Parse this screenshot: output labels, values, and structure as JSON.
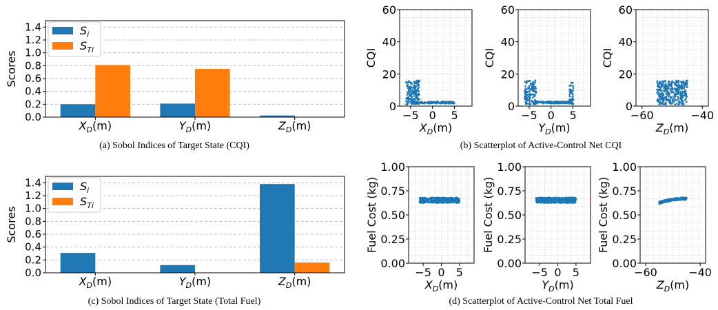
{
  "colors": {
    "si": "#1f77b4",
    "sti": "#ff7f0e",
    "scatter": "#1f77b4",
    "grid": "#b0b0b0"
  },
  "captions": {
    "a": "(a) Sobol Indices of Target State (CQI)",
    "b": "(b) Scatterplot of Active-Control Net CQI",
    "c": "(c) Sobol Indices of Target State (Total Fuel)",
    "d": "(d) Scatterplot of Active-Control Net Total Fuel"
  },
  "chart_data": [
    {
      "id": "a",
      "type": "bar",
      "categories": [
        "X_D(m)",
        "Y_D(m)",
        "Z_D(m)"
      ],
      "series": [
        {
          "name": "S_i",
          "values": [
            0.2,
            0.21,
            0.025
          ]
        },
        {
          "name": "S_Ti",
          "values": [
            0.81,
            0.75,
            0.0
          ]
        }
      ],
      "ylabel": "Scores",
      "ylim": [
        0,
        1.5
      ],
      "yticks": [
        "0.0",
        "0.2",
        "0.4",
        "0.6",
        "0.8",
        "1.0",
        "1.2",
        "1.4"
      ],
      "legend": "top-left",
      "grid": "horizontal dashed"
    },
    {
      "id": "c",
      "type": "bar",
      "categories": [
        "X_D(m)",
        "Y_D(m)",
        "Z_D(m)"
      ],
      "series": [
        {
          "name": "S_i",
          "values": [
            0.31,
            0.12,
            1.38
          ]
        },
        {
          "name": "S_Ti",
          "values": [
            0.0,
            0.0,
            0.16
          ]
        }
      ],
      "ylabel": "Scores",
      "ylim": [
        0,
        1.5
      ],
      "yticks": [
        "0.0",
        "0.2",
        "0.4",
        "0.6",
        "0.8",
        "1.0",
        "1.2",
        "1.4"
      ],
      "legend": "top-left",
      "grid": "horizontal dashed"
    },
    {
      "id": "b1",
      "type": "scatter",
      "xlabel": "X_D(m)",
      "ylabel": "CQI",
      "xlim": [
        -7.5,
        9
      ],
      "ylim": [
        0,
        60
      ],
      "xticks": [
        "-5",
        "0",
        "5"
      ],
      "yticks": [
        "0",
        "20",
        "40",
        "60"
      ],
      "pattern": "CQI 1-16 for x in [-6,-3], then ~2 up to x=5"
    },
    {
      "id": "b2",
      "type": "scatter",
      "xlabel": "Y_D(m)",
      "ylabel": "CQI",
      "xlim": [
        -7.5,
        9
      ],
      "ylim": [
        0,
        60
      ],
      "xticks": [
        "-5",
        "0",
        "5"
      ],
      "yticks": [
        "0",
        "20",
        "40",
        "60"
      ],
      "pattern": "CQI up to ~16 near y=-5 and y=5, ~2 in between"
    },
    {
      "id": "b3",
      "type": "scatter",
      "xlabel": "Z_D(m)",
      "ylabel": "CQI",
      "xlim": [
        -62,
        -38
      ],
      "ylim": [
        0,
        60
      ],
      "xticks": [
        "-60",
        "-40"
      ],
      "yticks": [
        "0",
        "20",
        "40",
        "60"
      ],
      "pattern": "CQI uniformly 1-16 for z in [-55,-45]"
    },
    {
      "id": "d1",
      "type": "scatter",
      "xlabel": "X_D(m)",
      "ylabel": "Fuel Cost (kg)",
      "xlim": [
        -9,
        9
      ],
      "ylim": [
        0,
        1
      ],
      "xticks": [
        "-5",
        "0",
        "5"
      ],
      "yticks": [
        "0.00",
        "0.25",
        "0.50",
        "0.75",
        "1.00"
      ],
      "pattern": "fuel ~0.63-0.68 for x in [-6,5]"
    },
    {
      "id": "d2",
      "type": "scatter",
      "xlabel": "Y_D(m)",
      "ylabel": "Fuel Cost (kg)",
      "xlim": [
        -9,
        9
      ],
      "ylim": [
        0,
        1
      ],
      "xticks": [
        "-5",
        "0",
        "5"
      ],
      "yticks": [
        "0.00",
        "0.25",
        "0.50",
        "0.75",
        "1.00"
      ],
      "pattern": "fuel ~0.63-0.68 for y in [-6,5]"
    },
    {
      "id": "d3",
      "type": "scatter",
      "xlabel": "Z_D(m)",
      "ylabel": "Fuel Cost (kg)",
      "xlim": [
        -62,
        -38
      ],
      "ylim": [
        0,
        1
      ],
      "xticks": [
        "-60",
        "-40"
      ],
      "yticks": [
        "0.00",
        "0.25",
        "0.50",
        "0.75",
        "1.00"
      ],
      "pattern": "fuel rising from ~0.62 at z=-55 to ~0.67 at z=-45"
    }
  ]
}
